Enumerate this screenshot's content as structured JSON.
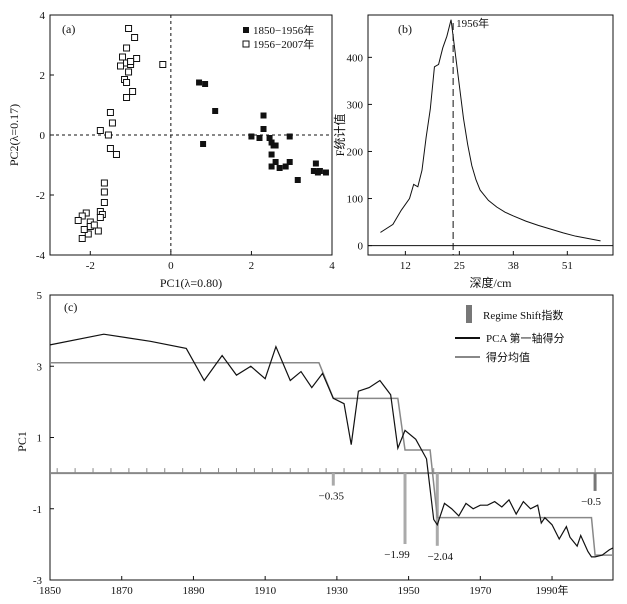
{
  "chart_data": [
    {
      "panel_label": "(a)",
      "type": "scatter",
      "xlabel": "PC1(λ=0.80)",
      "ylabel": "PC2(λ=0.17)",
      "xlim": [
        -3,
        4
      ],
      "ylim": [
        -4,
        4
      ],
      "x_ticks": [
        -2,
        0,
        2,
        4
      ],
      "y_ticks": [
        -4,
        -2,
        0,
        2,
        4
      ],
      "reference_lines": {
        "x": 0,
        "y": 0,
        "style": "dashed"
      },
      "legend_position": "top-right",
      "series": [
        {
          "name": "1850−1956年",
          "marker": "filled-square",
          "x": [
            0.7,
            0.85,
            1.1,
            0.8,
            2.0,
            2.3,
            2.3,
            2.2,
            2.45,
            2.5,
            2.55,
            2.5,
            2.6,
            2.5,
            2.95,
            2.6,
            2.95,
            2.7,
            2.85,
            3.6,
            3.55,
            3.65,
            3.7,
            3.85,
            3.15
          ],
          "y": [
            1.75,
            1.7,
            0.8,
            -0.3,
            -0.05,
            0.65,
            0.2,
            -0.1,
            -0.1,
            -0.25,
            -0.35,
            -0.65,
            -0.9,
            -1.05,
            -0.05,
            -0.35,
            -0.9,
            -1.1,
            -1.05,
            -0.95,
            -1.2,
            -1.25,
            -1.2,
            -1.25,
            -1.5
          ]
        },
        {
          "name": "1956−2007年",
          "marker": "open-square",
          "x": [
            -1.05,
            -0.9,
            -1.1,
            -0.85,
            -1.2,
            -1.1,
            -1.25,
            -1.0,
            -1.05,
            -1.15,
            -1.1,
            -0.95,
            -1.1,
            -0.2,
            -1.0,
            -1.5,
            -1.45,
            -1.75,
            -1.55,
            -1.5,
            -1.35,
            -1.65,
            -1.65,
            -1.65,
            -1.75,
            -1.7,
            -1.75,
            -1.8,
            -2.0,
            -2.1,
            -2.2,
            -2.0,
            -2.05,
            -2.15,
            -1.9,
            -2.3,
            -2.2
          ],
          "y": [
            3.55,
            3.25,
            2.9,
            2.55,
            2.6,
            2.4,
            2.3,
            2.35,
            2.1,
            1.85,
            1.75,
            1.45,
            1.25,
            2.35,
            2.45,
            0.75,
            0.4,
            0.15,
            0.0,
            -0.45,
            -0.65,
            -1.6,
            -1.9,
            -2.25,
            -2.55,
            -2.65,
            -2.75,
            -3.2,
            -2.9,
            -2.6,
            -2.7,
            -3.05,
            -3.3,
            -3.15,
            -3.0,
            -2.85,
            -3.45
          ]
        }
      ]
    },
    {
      "panel_label": "(b)",
      "type": "line",
      "xlabel": "深度/cm",
      "ylabel": "F统计值",
      "xlim": [
        3,
        62
      ],
      "ylim": [
        -20,
        490
      ],
      "x_ticks": [
        12,
        25,
        38,
        51
      ],
      "y_ticks": [
        0,
        100,
        200,
        300,
        400
      ],
      "annotation": {
        "x": 23.5,
        "label": "1956年",
        "style": "dashed"
      },
      "x": [
        6,
        9,
        11,
        13,
        14,
        15,
        16,
        17,
        18,
        19,
        20,
        21,
        22,
        23,
        24,
        25,
        26,
        27,
        28,
        29,
        30,
        32,
        34,
        36,
        38,
        41,
        44,
        47,
        50,
        53,
        56,
        59
      ],
      "y": [
        28,
        45,
        75,
        100,
        130,
        125,
        160,
        230,
        290,
        380,
        385,
        420,
        445,
        480,
        410,
        340,
        270,
        215,
        170,
        140,
        118,
        96,
        82,
        71,
        63,
        52,
        43,
        35,
        27,
        20,
        15,
        10
      ]
    },
    {
      "panel_label": "(c)",
      "type": "line",
      "ylabel": "PC1",
      "xlim": [
        1850,
        2007
      ],
      "ylim": [
        -3,
        5
      ],
      "x_ticks": [
        1850,
        1870,
        1890,
        1910,
        1930,
        1950,
        1970,
        1990
      ],
      "x_tick_labels": [
        "1850",
        "1870",
        "1890",
        "1910",
        "1930",
        "1950",
        "1970",
        "1990年"
      ],
      "y_ticks": [
        -3,
        -1,
        1,
        3,
        5
      ],
      "baseline_y": 0,
      "legend_position": "top-right",
      "series": [
        {
          "name": "PCA 第一轴得分",
          "color": "#111111",
          "x": [
            1850,
            1865,
            1878,
            1888,
            1893,
            1898,
            1902,
            1906,
            1910,
            1913,
            1917,
            1920,
            1923,
            1926,
            1929,
            1932,
            1934,
            1936,
            1939,
            1942,
            1945,
            1947,
            1949,
            1952,
            1955,
            1957,
            1958,
            1960,
            1962,
            1964,
            1966,
            1968,
            1970,
            1972,
            1974,
            1976,
            1978,
            1980,
            1982,
            1984,
            1986,
            1987,
            1988,
            1990,
            1992,
            1994,
            1995,
            1997,
            1998,
            2000,
            2001,
            2002,
            2004,
            2006,
            2007
          ],
          "y": [
            3.6,
            3.9,
            3.7,
            3.5,
            2.6,
            3.3,
            2.75,
            3.0,
            2.65,
            3.55,
            2.6,
            2.85,
            2.4,
            2.8,
            2.1,
            1.95,
            0.8,
            2.3,
            2.4,
            2.6,
            2.2,
            0.7,
            1.2,
            0.95,
            0.4,
            -1.3,
            -1.45,
            -0.85,
            -1.0,
            -1.2,
            -0.85,
            -1.0,
            -0.9,
            -0.9,
            -0.8,
            -0.95,
            -0.75,
            -1.15,
            -0.8,
            -1.0,
            -0.9,
            -1.4,
            -1.25,
            -1.45,
            -1.85,
            -1.5,
            -1.8,
            -2.05,
            -1.75,
            -2.2,
            -2.35,
            -2.35,
            -2.3,
            -2.15,
            -2.1
          ]
        },
        {
          "name": "得分均值",
          "color": "#888888",
          "type": "step",
          "segments": [
            {
              "x0": 1850,
              "x1": 1925,
              "y": 3.1
            },
            {
              "x0": 1929,
              "x1": 1947,
              "y": 2.1
            },
            {
              "x0": 1949,
              "x1": 1956,
              "y": 0.65
            },
            {
              "x0": 1958,
              "x1": 2001,
              "y": -1.25
            },
            {
              "x0": 2002,
              "x1": 2007,
              "y": -2.3
            }
          ]
        },
        {
          "name": "Regime Shift指数",
          "type": "bar",
          "color": "#aaaaaa",
          "x": [
            1929,
            1949,
            1958,
            2002
          ],
          "values": [
            -0.35,
            -1.99,
            -2.04,
            -0.5
          ],
          "labels": [
            "−0.35",
            "−1.99",
            "−2.04",
            "−0.5"
          ]
        }
      ]
    }
  ]
}
